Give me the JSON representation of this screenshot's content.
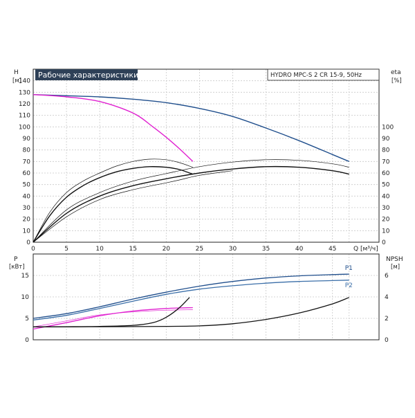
{
  "chart_data": [
    {
      "type": "line",
      "title": "Рабочие характеристики",
      "model": "HYDRO MPC-S 2 CR 15-9, 50Hz",
      "xlabel": "Q [м³/ч]",
      "ylabel_left": "H",
      "ylabel_left_unit": "[м]",
      "ylabel_right": "eta",
      "ylabel_right_unit": "[%]",
      "xlim": [
        0,
        52
      ],
      "ylim_left": [
        0,
        150
      ],
      "ylim_right": [
        0,
        150
      ],
      "x_ticks": [
        0,
        5,
        10,
        15,
        20,
        25,
        30,
        35,
        40,
        45
      ],
      "y_ticks_left": [
        0,
        10,
        20,
        30,
        40,
        50,
        60,
        70,
        80,
        90,
        100,
        110,
        120,
        130,
        140
      ],
      "y_ticks_right": [
        0,
        10,
        20,
        30,
        40,
        50,
        60,
        70,
        80,
        90,
        100
      ],
      "grid": true,
      "series": [
        {
          "role": "head-two-pumps",
          "color": "#1f4e8c",
          "x": [
            0,
            5,
            10,
            15,
            20,
            25,
            30,
            35,
            40,
            45,
            47.5
          ],
          "y": [
            128,
            127,
            126,
            124,
            121,
            116,
            109,
            99,
            88,
            76,
            70
          ]
        },
        {
          "role": "head-one-pump",
          "color": "#e020d0",
          "x": [
            0,
            5,
            10,
            15,
            18,
            20,
            22,
            24
          ],
          "y": [
            128,
            126,
            122,
            112,
            100,
            91,
            81,
            70
          ]
        },
        {
          "role": "eta-one-pump",
          "color": "#111111",
          "x": [
            0,
            2.5,
            5,
            7.5,
            10,
            12.5,
            15,
            17.5,
            20,
            22,
            24
          ],
          "y": [
            0,
            23,
            39,
            49,
            56,
            61,
            64,
            65.5,
            65,
            63,
            59
          ]
        },
        {
          "role": "eta-one-pump-upper",
          "color": "#111111",
          "width": 0.7,
          "x": [
            0,
            2.5,
            5,
            7.5,
            10,
            12.5,
            15,
            17.5,
            20,
            22,
            24
          ],
          "y": [
            0,
            26,
            43,
            53,
            60,
            66,
            70,
            72,
            71.5,
            69,
            65
          ]
        },
        {
          "role": "eta-two-pumps",
          "color": "#111111",
          "x": [
            0,
            5,
            10,
            15,
            20,
            25,
            30,
            35,
            40,
            45,
            47.5
          ],
          "y": [
            0,
            25,
            40,
            49,
            55,
            60,
            63.5,
            65.5,
            65,
            62,
            59
          ]
        },
        {
          "role": "eta-two-pumps-upper",
          "color": "#111111",
          "width": 0.7,
          "x": [
            0,
            5,
            10,
            15,
            20,
            25,
            30,
            35,
            40,
            45,
            47.5
          ],
          "y": [
            0,
            28,
            43,
            53,
            59.5,
            65.5,
            69.5,
            71.5,
            71,
            68,
            65
          ]
        },
        {
          "role": "eta-two-pumps-lower",
          "color": "#111111",
          "width": 0.7,
          "x": [
            0,
            5,
            10,
            15,
            20,
            22,
            25,
            30
          ],
          "y": [
            0,
            22,
            37,
            45.5,
            51.5,
            54,
            58,
            62
          ]
        }
      ]
    },
    {
      "type": "line",
      "ylabel_left": "P",
      "ylabel_left_unit": "[кВт]",
      "ylabel_right": "NPSH",
      "ylabel_right_unit": "[м]",
      "xlim": [
        0,
        52
      ],
      "ylim_left": [
        0,
        20
      ],
      "ylim_right": [
        0,
        8
      ],
      "y_ticks_left": [
        0,
        5,
        10,
        15
      ],
      "y_ticks_right": [
        0,
        2,
        4,
        6
      ],
      "grid": true,
      "series": [
        {
          "name": "P1",
          "color": "#1f4e8c",
          "x": [
            0,
            5,
            10,
            15,
            20,
            25,
            30,
            35,
            40,
            45,
            47.5
          ],
          "y": [
            5,
            6.1,
            7.7,
            9.5,
            11.1,
            12.5,
            13.6,
            14.4,
            14.9,
            15.2,
            15.3
          ]
        },
        {
          "name": "P2",
          "color": "#3a6ea8",
          "x": [
            0,
            5,
            10,
            15,
            20,
            25,
            30,
            35,
            40,
            45,
            47.5
          ],
          "y": [
            4.6,
            5.7,
            7.3,
            9,
            10.6,
            11.8,
            12.6,
            13.2,
            13.6,
            13.8,
            13.9
          ]
        },
        {
          "role": "power-one-pump",
          "color": "#e020d0",
          "x": [
            0,
            5,
            10,
            15,
            20,
            24
          ],
          "y": [
            2.5,
            4,
            5.6,
            6.7,
            7.3,
            7.5
          ]
        },
        {
          "role": "power-one-pump-2",
          "color": "#e020d0",
          "width": 0.7,
          "x": [
            0,
            5,
            10,
            15,
            20,
            24
          ],
          "y": [
            3,
            4.4,
            5.8,
            6.5,
            6.9,
            7
          ]
        },
        {
          "role": "npsh-one-pump",
          "color": "#111111",
          "axis": "right",
          "x": [
            0,
            5,
            10,
            15,
            18,
            20,
            22,
            23.5
          ],
          "y": [
            1.2,
            1.22,
            1.25,
            1.35,
            1.6,
            2.1,
            3,
            3.95
          ]
        },
        {
          "role": "npsh-two-pumps",
          "color": "#111111",
          "axis": "right",
          "x": [
            0,
            10,
            20,
            25,
            30,
            35,
            40,
            45,
            47.5
          ],
          "y": [
            1.2,
            1.22,
            1.25,
            1.3,
            1.5,
            1.9,
            2.5,
            3.35,
            3.95
          ]
        }
      ]
    }
  ]
}
